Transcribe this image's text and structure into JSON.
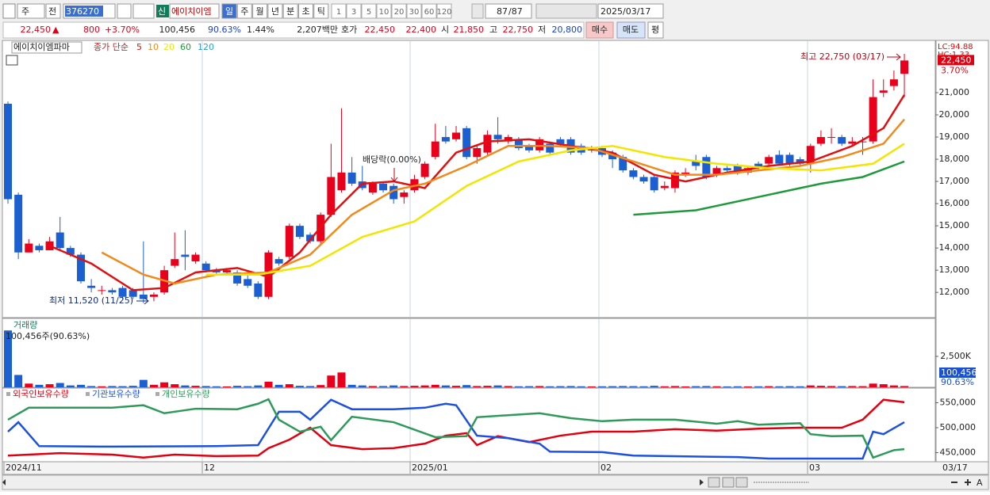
{
  "toolbar": {
    "market": "주",
    "prev": "전",
    "code": "376270",
    "new_badge": "신",
    "stock_name": "에이치이엠",
    "periods": [
      "일",
      "주",
      "월",
      "년",
      "분",
      "초",
      "틱"
    ],
    "intervals": [
      "1",
      "3",
      "5",
      "10",
      "20",
      "30",
      "60",
      "120"
    ],
    "count": "87",
    "total": "/87",
    "date": "2025/03/17"
  },
  "quote": {
    "price": "22,450",
    "arrow": "▲",
    "change": "800",
    "change_pct": "+3.70%",
    "volume": "100,456",
    "volume_ratio": "90.63%",
    "turnover": "1.44%",
    "amount": "2,207백만",
    "bid_ask_label": "호가",
    "ask": "22,450",
    "bid": "22,400",
    "open_label": "시",
    "open": "21,850",
    "high_label": "고",
    "high": "22,750",
    "low_label": "저",
    "low": "20,800",
    "buy": "매수",
    "sell": "매도",
    "avg": "평"
  },
  "price_chart": {
    "type": "candlestick",
    "name_label": "에이치이엠파마",
    "ma_label": "종가 단순",
    "ylim": [
      10900,
      23320
    ],
    "yticks": [
      {
        "value": 12000,
        "label": "12,000"
      },
      {
        "value": 13000,
        "label": "13,000"
      },
      {
        "value": 14000,
        "label": "14,000"
      },
      {
        "value": 15000,
        "label": "15,000"
      },
      {
        "value": 16000,
        "label": "16,000"
      },
      {
        "value": 17000,
        "label": "17,000"
      },
      {
        "value": 18000,
        "label": "18,000"
      },
      {
        "value": 19000,
        "label": "19,000"
      },
      {
        "value": 20000,
        "label": "20,000"
      },
      {
        "value": 21000,
        "label": "21,000"
      }
    ],
    "up_color": "#e8001c",
    "down_color": "#1c5fd0",
    "candles": {
      "open": [
        20500,
        16400,
        13800,
        14100,
        13900,
        14700,
        14000,
        13700,
        12300,
        12100,
        12100,
        12200,
        12100,
        11900,
        11800,
        12000,
        13200,
        13700,
        13400,
        13300,
        13000,
        12900,
        12900,
        12600,
        12400,
        11800,
        13500,
        13600,
        15000,
        14600,
        14300,
        15500,
        16600,
        17400,
        17000,
        16500,
        16900,
        16800,
        16300,
        16600,
        17200,
        18100,
        19000,
        18900,
        19400,
        18100,
        18300,
        19100,
        18800,
        18900,
        18600,
        18400,
        18700,
        18900,
        18900,
        18600,
        18400,
        18500,
        18300,
        18100,
        17500,
        17200,
        17200,
        16700,
        16700,
        17300,
        17900,
        18100,
        17300,
        17600,
        17700,
        17400,
        17800,
        17800,
        18200,
        18200,
        18000,
        17800,
        18700,
        19000,
        19000,
        18700,
        18800,
        18800,
        21000,
        21300,
        21850
      ],
      "high": [
        20600,
        16500,
        14400,
        14200,
        14500,
        15400,
        14100,
        13800,
        12600,
        12300,
        12200,
        12300,
        12200,
        14300,
        12000,
        13200,
        14700,
        14800,
        13800,
        13400,
        13100,
        13100,
        13000,
        13000,
        12500,
        13900,
        13600,
        15100,
        15100,
        14700,
        15600,
        18700,
        20300,
        18100,
        17700,
        17000,
        17000,
        16900,
        16600,
        17300,
        17900,
        19600,
        19500,
        19500,
        19500,
        18600,
        19300,
        19900,
        19100,
        19000,
        18700,
        19000,
        18800,
        19000,
        19000,
        18700,
        18600,
        18600,
        18400,
        18200,
        17600,
        17300,
        17300,
        17000,
        17500,
        17600,
        18200,
        18200,
        17700,
        17700,
        17800,
        17700,
        17900,
        18200,
        18400,
        18300,
        18100,
        18700,
        19300,
        19400,
        19100,
        19000,
        19000,
        21600,
        21600,
        22000,
        22750
      ],
      "low": [
        16000,
        13500,
        13800,
        13800,
        13900,
        13900,
        13600,
        12400,
        12000,
        11900,
        11900,
        11700,
        11700,
        11520,
        11600,
        11900,
        13100,
        13000,
        13300,
        12900,
        12800,
        12800,
        12300,
        12200,
        11700,
        11700,
        13200,
        13500,
        14400,
        14200,
        14200,
        15400,
        16500,
        16800,
        16600,
        16400,
        16500,
        16000,
        16000,
        16500,
        17100,
        18000,
        18700,
        18800,
        18000,
        17800,
        18200,
        18700,
        18700,
        18400,
        18300,
        18300,
        18200,
        18600,
        18200,
        18200,
        18300,
        18100,
        17600,
        17400,
        17100,
        16900,
        16500,
        16600,
        16500,
        17200,
        17500,
        17100,
        17200,
        17400,
        17300,
        17300,
        17500,
        17700,
        17700,
        17700,
        17700,
        17400,
        18600,
        18700,
        18600,
        18600,
        18200,
        18700,
        20800,
        21100,
        20800
      ],
      "close": [
        16200,
        13800,
        14200,
        13900,
        14300,
        14000,
        13700,
        12500,
        12200,
        12100,
        12000,
        11800,
        11800,
        11700,
        11900,
        13000,
        13500,
        13600,
        13700,
        13000,
        12900,
        13000,
        12400,
        12300,
        11800,
        13800,
        13300,
        15000,
        14500,
        14300,
        15500,
        17200,
        17400,
        16900,
        16700,
        16900,
        16600,
        16200,
        16500,
        17100,
        17800,
        18800,
        18800,
        19200,
        18100,
        18500,
        19100,
        18900,
        19000,
        18500,
        18400,
        18900,
        18300,
        18700,
        18300,
        18300,
        18500,
        18200,
        18000,
        17500,
        17200,
        17000,
        16600,
        16800,
        17400,
        17400,
        17700,
        17200,
        17600,
        17500,
        17400,
        17600,
        17600,
        18100,
        17800,
        17800,
        17800,
        18600,
        19000,
        19000,
        18700,
        18800,
        18800,
        20800,
        21100,
        21600,
        22450
      ]
    },
    "moving_averages": [
      {
        "name": "5",
        "color": "#e01010",
        "x": [
          4,
          8,
          12,
          15,
          18,
          22,
          25,
          28,
          31,
          34,
          37,
          40,
          43,
          46,
          50,
          54,
          58,
          62,
          65,
          69,
          73,
          77,
          81,
          84,
          86
        ],
        "values": [
          14100,
          13300,
          12100,
          12200,
          12900,
          13100,
          12700,
          13800,
          15500,
          16900,
          17000,
          16700,
          18300,
          18800,
          18900,
          18600,
          18300,
          17300,
          17000,
          17400,
          17700,
          17900,
          18600,
          19400,
          20900
        ]
      },
      {
        "name": "10",
        "color": "#f08a1c",
        "x": [
          9,
          13,
          16,
          20,
          25,
          29,
          33,
          37,
          40,
          44,
          48,
          52,
          56,
          60,
          64,
          68,
          72,
          76,
          80,
          84,
          86
        ],
        "values": [
          13800,
          12800,
          12400,
          12800,
          12900,
          13700,
          15500,
          16600,
          16900,
          17700,
          18600,
          18600,
          18500,
          17900,
          17300,
          17300,
          17500,
          17700,
          18100,
          18700,
          19800
        ]
      },
      {
        "name": "20",
        "color": "#f2e600",
        "x": [
          19,
          24,
          29,
          34,
          39,
          44,
          49,
          54,
          58,
          63,
          68,
          73,
          78,
          83,
          86
        ],
        "values": [
          12800,
          12800,
          13200,
          14500,
          15200,
          16800,
          17900,
          18400,
          18600,
          18100,
          17800,
          17600,
          17500,
          17800,
          18700
        ]
      },
      {
        "name": "60",
        "color": "#1e9a3a",
        "x": [
          60,
          66,
          72,
          78,
          82,
          86
        ],
        "values": [
          15500,
          15700,
          16300,
          16900,
          17200,
          17900
        ]
      },
      {
        "name": "120",
        "color": "#2aa0c8"
      }
    ],
    "lc_label": "LC:94.88",
    "hc_label": "HC:1.33",
    "last_price_label": "22,450",
    "last_change_label": "3.70%",
    "annotations": {
      "high": "최고 22,750 (03/17)",
      "low": "최저 11,520 (11/25)",
      "dividend": "배당락(0.00%)"
    }
  },
  "volume_chart": {
    "type": "bar",
    "title": "거래량",
    "summary": "100,456주(90.63%)",
    "ylim": [
      0,
      5450
    ],
    "yticks": [
      {
        "value": 2500,
        "label": "2,500K"
      }
    ],
    "values": [
      4600,
      1000,
      300,
      200,
      250,
      350,
      150,
      200,
      100,
      80,
      100,
      90,
      120,
      600,
      200,
      400,
      250,
      150,
      120,
      100,
      80,
      70,
      120,
      90,
      150,
      450,
      200,
      250,
      120,
      100,
      180,
      950,
      1200,
      200,
      150,
      100,
      100,
      150,
      100,
      120,
      150,
      200,
      150,
      120,
      180,
      100,
      120,
      150,
      100,
      80,
      90,
      100,
      80,
      90,
      100,
      80,
      70,
      80,
      90,
      100,
      90,
      80,
      120,
      80,
      100,
      70,
      90,
      100,
      80,
      70,
      80,
      70,
      80,
      90,
      80,
      90,
      80,
      150,
      120,
      100,
      90,
      100,
      90,
      300,
      250,
      150,
      100.456
    ],
    "last_label": "100,456",
    "last_ratio_label": "90.63%"
  },
  "holding_chart": {
    "type": "line",
    "ylim": [
      433300,
      577800
    ],
    "yticks": [
      {
        "value": 450000,
        "label": "450,000"
      },
      {
        "value": 500000,
        "label": "500,000"
      },
      {
        "value": 550000,
        "label": "550,000"
      }
    ],
    "series": [
      {
        "name": "외국인보유수량",
        "color": "#e00010",
        "x": [
          0,
          5,
          10,
          13,
          16,
          20,
          24,
          25,
          27,
          29,
          31,
          34,
          37,
          40,
          42,
          44,
          45,
          47,
          50,
          53,
          56,
          60,
          64,
          68,
          72,
          76,
          80,
          82,
          84,
          86
        ],
        "values": [
          444000,
          449000,
          446000,
          440000,
          446000,
          443000,
          444000,
          459000,
          476000,
          500000,
          465000,
          457000,
          459000,
          468000,
          484000,
          489000,
          465000,
          483000,
          471000,
          484000,
          492000,
          492000,
          497000,
          494000,
          498000,
          500000,
          500000,
          516000,
          556000,
          551000
        ]
      },
      {
        "name": "기관보유수량",
        "color": "#1c50e0",
        "x": [
          0,
          1,
          3,
          10,
          20,
          24,
          26,
          28,
          29,
          31,
          33,
          37,
          40,
          42,
          43,
          45,
          48,
          51,
          52,
          57,
          60,
          70,
          73,
          80,
          82,
          83,
          84,
          86
        ],
        "values": [
          492000,
          511000,
          463000,
          462000,
          463000,
          465000,
          532000,
          532000,
          516000,
          556000,
          537000,
          537000,
          540000,
          548000,
          545000,
          484000,
          479000,
          468000,
          452000,
          451000,
          444000,
          441000,
          438000,
          438000,
          438000,
          492000,
          487000,
          511000
        ]
      },
      {
        "name": "개인보유수량",
        "color": "#2e9a5a",
        "x": [
          0,
          2,
          5,
          10,
          13,
          15,
          18,
          22,
          24,
          25,
          26,
          28,
          30,
          31,
          33,
          37,
          41,
          44,
          45,
          48,
          51,
          54,
          57,
          60,
          64,
          68,
          70,
          72,
          76,
          77,
          79,
          82,
          83,
          85,
          86
        ],
        "values": [
          516000,
          540000,
          540000,
          540000,
          545000,
          529000,
          538000,
          537000,
          548000,
          557000,
          516000,
          492000,
          502000,
          475000,
          522000,
          511000,
          481000,
          483000,
          521000,
          525000,
          529000,
          519000,
          513000,
          516000,
          516000,
          508000,
          513000,
          506000,
          509000,
          487000,
          483000,
          484000,
          440000,
          455000,
          457000
        ]
      }
    ]
  },
  "date_axis": {
    "labels": [
      "2024/11",
      "12",
      "2025/01",
      "02",
      "03"
    ],
    "last_date": "03/17",
    "font_button": "A"
  }
}
